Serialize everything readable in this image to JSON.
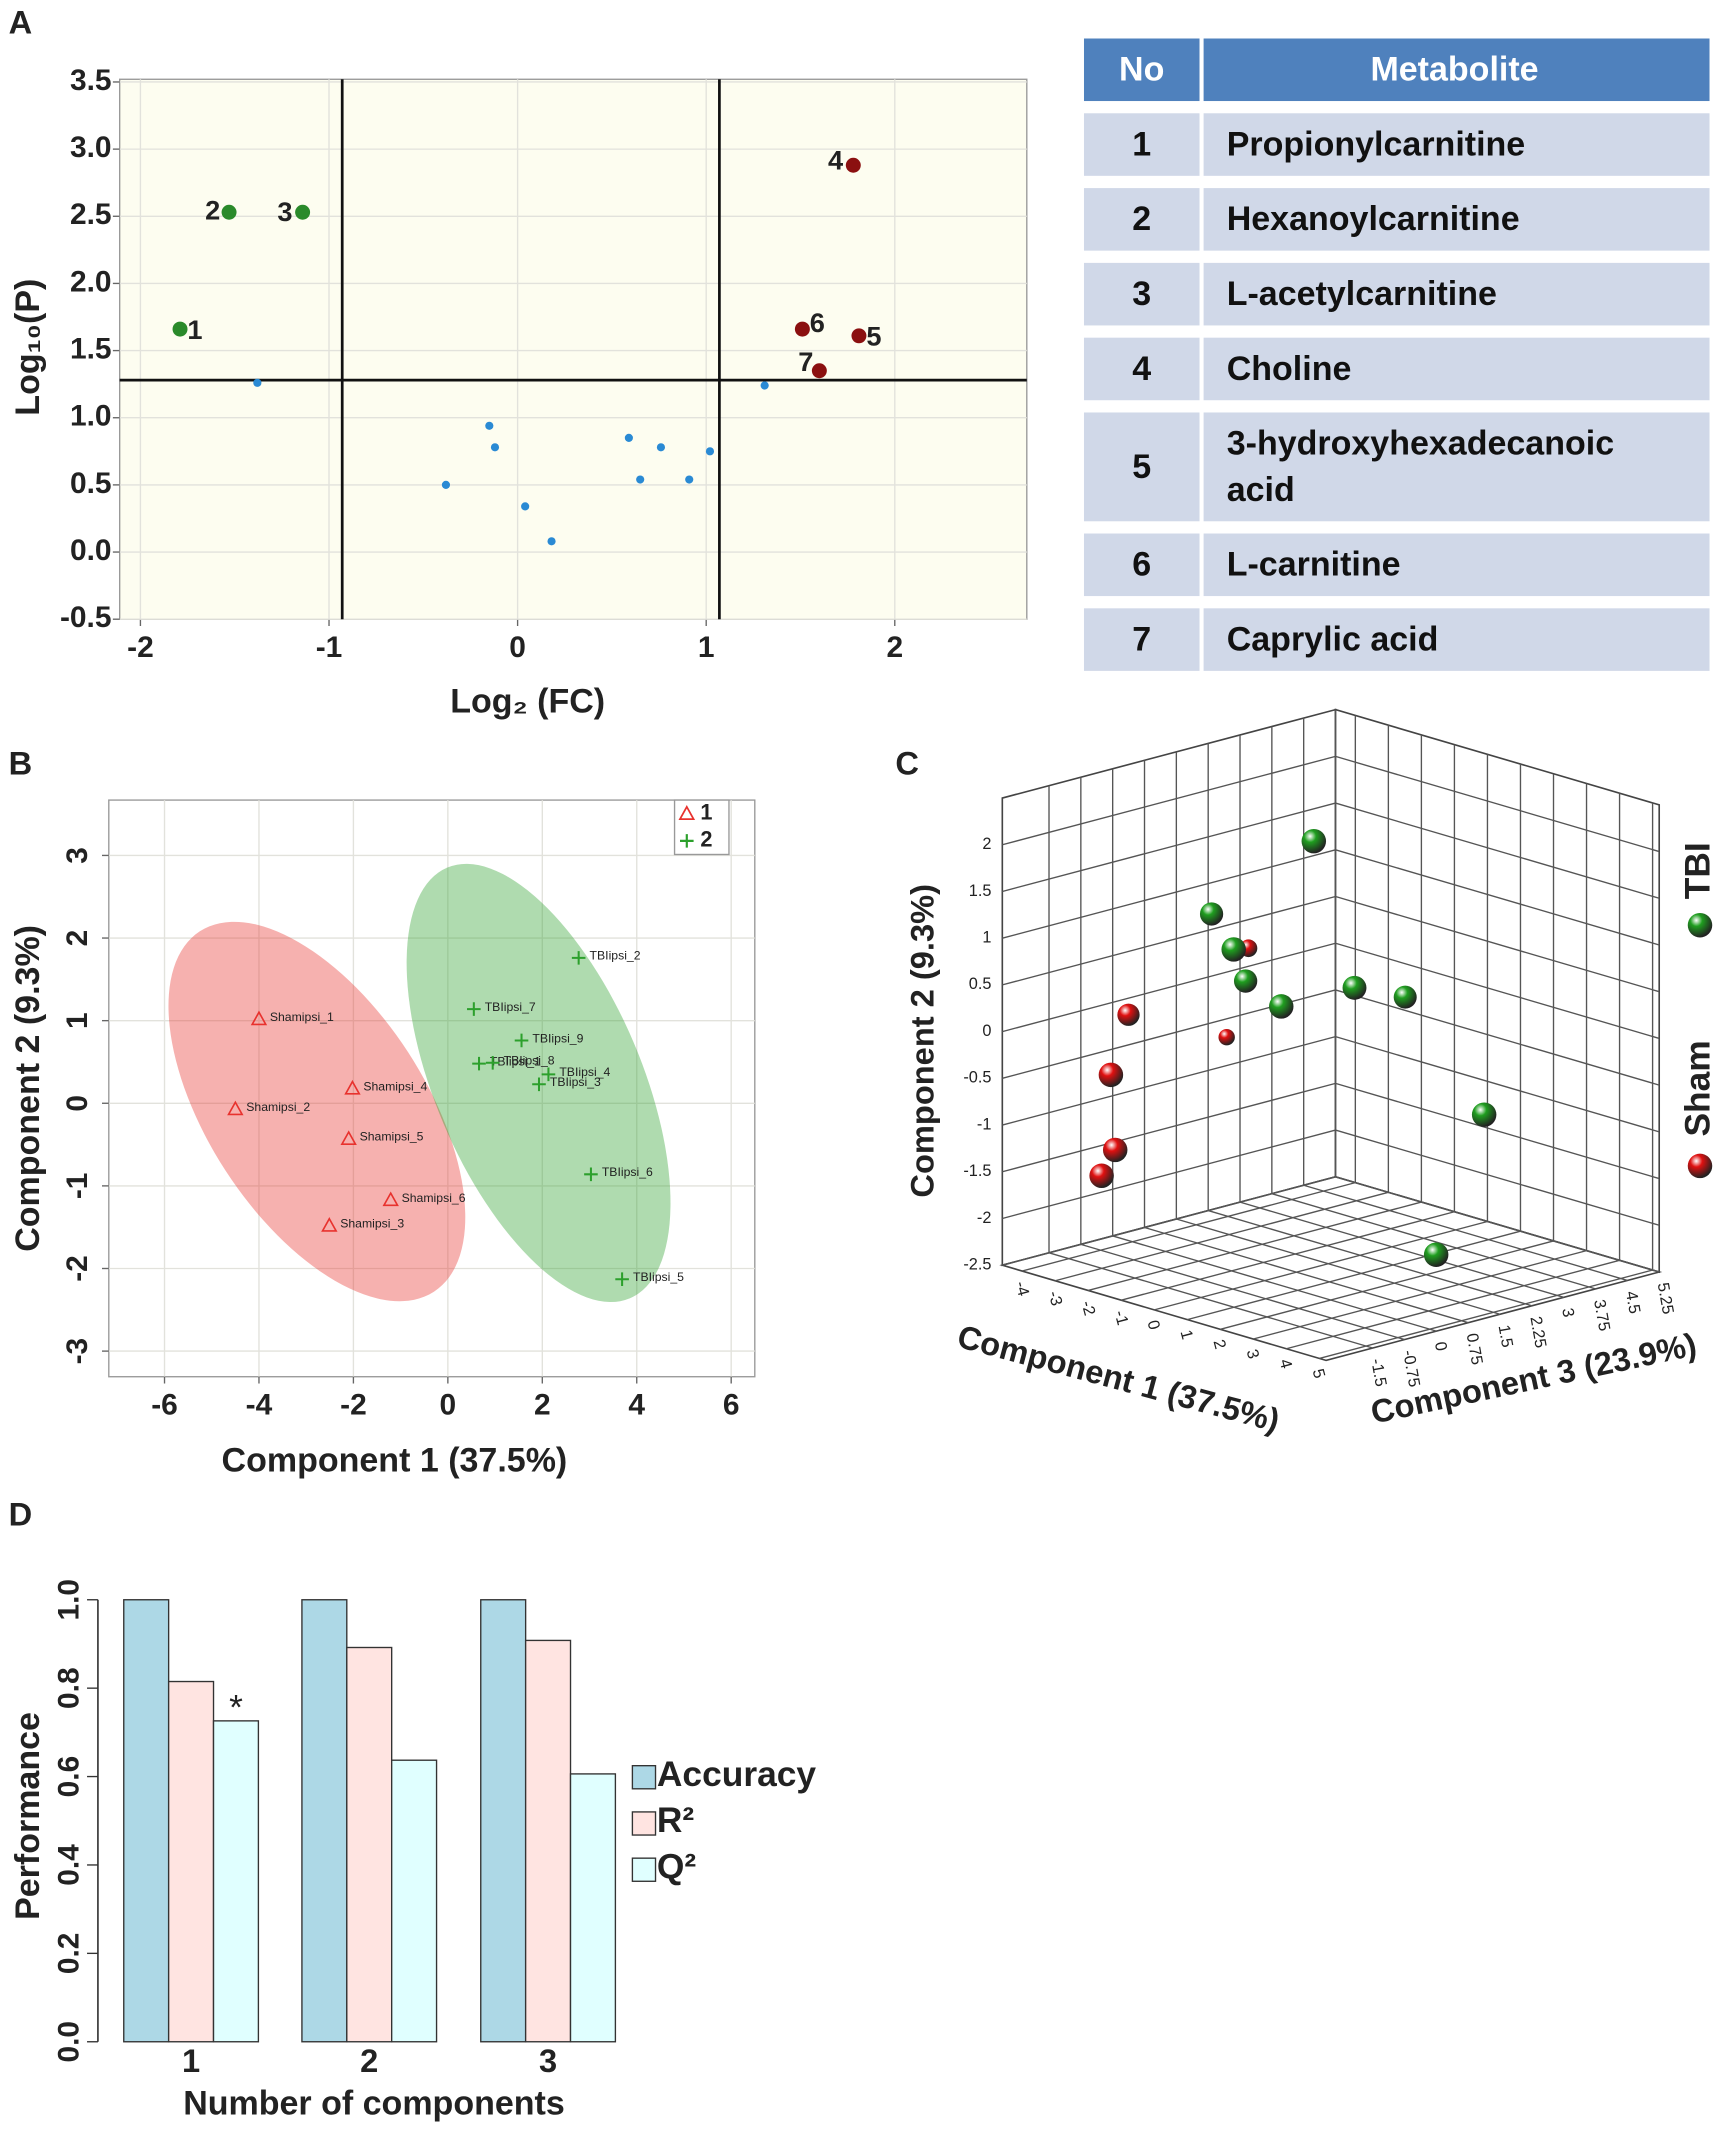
{
  "chart_data": [
    {
      "panel": "A",
      "type": "scatter",
      "xlabel": "Log₂ (FC)",
      "ylabel": "Log₁₀(P)",
      "xlim": [
        -2.11,
        2.7
      ],
      "ylim": [
        -0.5,
        3.52
      ],
      "xticks": [
        -2,
        -1,
        0,
        1,
        2
      ],
      "yticks": [
        3.5,
        {
          "value": 3,
          "label": "3.0"
        },
        2.5,
        {
          "value": 2,
          "label": "2.0"
        },
        1.5,
        {
          "value": 1,
          "label": "1.0"
        },
        0.5,
        {
          "value": 0,
          "label": "0.0"
        },
        -0.5
      ],
      "grid": true,
      "background": "#fdfdf0",
      "thresholds": {
        "x": [
          -0.93,
          1.07
        ],
        "y": 1.28
      },
      "series": [
        {
          "color": "#2a8a2a",
          "x": [
            -1.79,
            -1.53,
            -1.14
          ],
          "values": [
            1.66,
            2.53,
            2.53
          ],
          "point_labels": [
            "1",
            "2",
            "3"
          ]
        },
        {
          "color": "#8b1010",
          "x": [
            1.78,
            1.81,
            1.51,
            1.6
          ],
          "values": [
            2.88,
            1.61,
            1.66,
            1.35
          ],
          "point_labels": [
            "4",
            "5",
            "6",
            "7"
          ]
        },
        {
          "color": "#2a8ad4",
          "x": [
            -1.38,
            -0.15,
            -0.12,
            -0.38,
            0.04,
            0.18,
            0.59,
            0.65,
            0.76,
            0.91,
            1.02,
            1.31
          ],
          "values": [
            1.26,
            0.94,
            0.78,
            0.5,
            0.34,
            0.08,
            0.85,
            0.54,
            0.78,
            0.54,
            0.75,
            1.24
          ]
        }
      ]
    },
    {
      "panel": "B",
      "type": "scatter",
      "xlabel": "Component 1 (37.5%)",
      "ylabel": "Component 2 (9.3%)",
      "xlim": [
        -7.18,
        6.5
      ],
      "ylim": [
        -3.31,
        3.67
      ],
      "xticks": [
        -6,
        -4,
        -2,
        0,
        2,
        4,
        6
      ],
      "yticks": [
        -3,
        -2,
        -1,
        0,
        1,
        2,
        3
      ],
      "grid": true,
      "legend": "upper right",
      "series": [
        {
          "name": "1",
          "color": "#e8322e",
          "marker": "triangle",
          "x": [
            -4.0,
            -4.5,
            -2.02,
            -2.1,
            -1.21,
            -2.51
          ],
          "values": [
            1.02,
            -0.07,
            0.18,
            -0.43,
            -1.17,
            -1.48
          ],
          "point_labels": [
            "Shamipsi_1",
            "Shamipsi_2",
            "Shamipsi_4",
            "Shamipsi_5",
            "Shamipsi_6",
            "Shamipsi_3"
          ]
        },
        {
          "name": "2",
          "color": "#2ca02c",
          "marker": "plus",
          "x": [
            2.77,
            0.55,
            1.56,
            0.66,
            0.95,
            2.13,
            1.93,
            3.03,
            3.69
          ],
          "values": [
            1.76,
            1.14,
            0.76,
            0.48,
            0.49,
            0.35,
            0.23,
            -0.86,
            -2.13
          ],
          "point_labels": [
            "TBIipsi_2",
            "TBIipsi_7",
            "TBIipsi_9",
            "TBIipsi_1",
            "TBIipsi_8",
            "TBIipsi_4",
            "TBIipsi_3",
            "TBIipsi_6",
            "TBIipsi_5"
          ]
        }
      ]
    },
    {
      "panel": "C",
      "type": "scatter3d",
      "xlabel": "Component 1 (37.5%)",
      "ylabel": "Component 2 (9.3%)",
      "zlabel": "Component 3 (23.9%)",
      "xlim": [
        -4.6,
        5.2
      ],
      "ylim": [
        -2.5,
        2.5
      ],
      "zlim": [
        -2.6,
        5.25
      ],
      "xticks": [
        -4,
        -3,
        -2,
        -1,
        0,
        1,
        2,
        3,
        4,
        5
      ],
      "yticks": [
        2,
        1.5,
        1,
        0.5,
        0,
        -0.5,
        -1,
        -1.5,
        -2,
        -2.5
      ],
      "zticks": [
        -1.5,
        -0.75,
        0,
        0.75,
        1.5,
        2.25,
        3,
        3.75,
        4.5,
        5.25
      ],
      "grid": true,
      "legend": "right",
      "series": [
        {
          "name": "Sham",
          "color": "#e01010",
          "x": [
            -3.2,
            -3.8,
            -3.86,
            -3.33,
            -3.2,
            -3.11
          ],
          "values": [
            0.47,
            -0.02,
            -0.55,
            -0.52,
            -1.31,
            -1.53
          ],
          "z": [
            2.11,
            -0.25,
            2.11,
            -1.03,
            -1.03,
            -1.42
          ]
        },
        {
          "name": "TBI",
          "color": "#1f9e1f",
          "x": [
            -0.22,
            -2.3,
            -1.63,
            -1.77,
            -0.19,
            0.01,
            0.53,
            2.92,
            4.5
          ],
          "values": [
            2.02,
            1.12,
            0.81,
            0.41,
            0.35,
            0.38,
            0.24,
            -0.77,
            -1.82
          ],
          "z": [
            1.33,
            0.54,
            0.54,
            0.93,
            0.54,
            2.11,
            2.9,
            2.9,
            0.54
          ]
        }
      ]
    },
    {
      "panel": "D",
      "type": "bar",
      "xlabel": "Number of components",
      "ylabel": "Performance",
      "categories": [
        "1",
        "2",
        "3"
      ],
      "ylim": [
        0,
        1
      ],
      "yticks": [
        {
          "value": 0,
          "label": "0.0"
        },
        0.2,
        0.4,
        0.6,
        0.8,
        {
          "value": 1,
          "label": "1.0"
        }
      ],
      "legend": "right",
      "series": [
        {
          "name": "Accuracy",
          "color": "#add8e6",
          "values": [
            1.0,
            1.0,
            1.0
          ]
        },
        {
          "name": "R²",
          "color": "#ffe4e1",
          "values": [
            0.815,
            0.892,
            0.908
          ]
        },
        {
          "name": "Q²",
          "color": "#e0ffff",
          "values": [
            0.726,
            0.637,
            0.606
          ]
        }
      ],
      "annotations": [
        {
          "text": "*",
          "color": "#ff2020"
        }
      ]
    }
  ],
  "table": {
    "header": [
      "No",
      "Metabolite"
    ],
    "rows": [
      [
        "1",
        "Propionylcarnitine"
      ],
      [
        "2",
        "Hexanoylcarnitine"
      ],
      [
        "3",
        "L-acetylcarnitine"
      ],
      [
        "4",
        "Choline"
      ],
      [
        "5",
        "3-hydroxyhexadecanoic acid"
      ],
      [
        "6",
        "L-carnitine"
      ],
      [
        "7",
        "Caprylic acid"
      ]
    ]
  }
}
